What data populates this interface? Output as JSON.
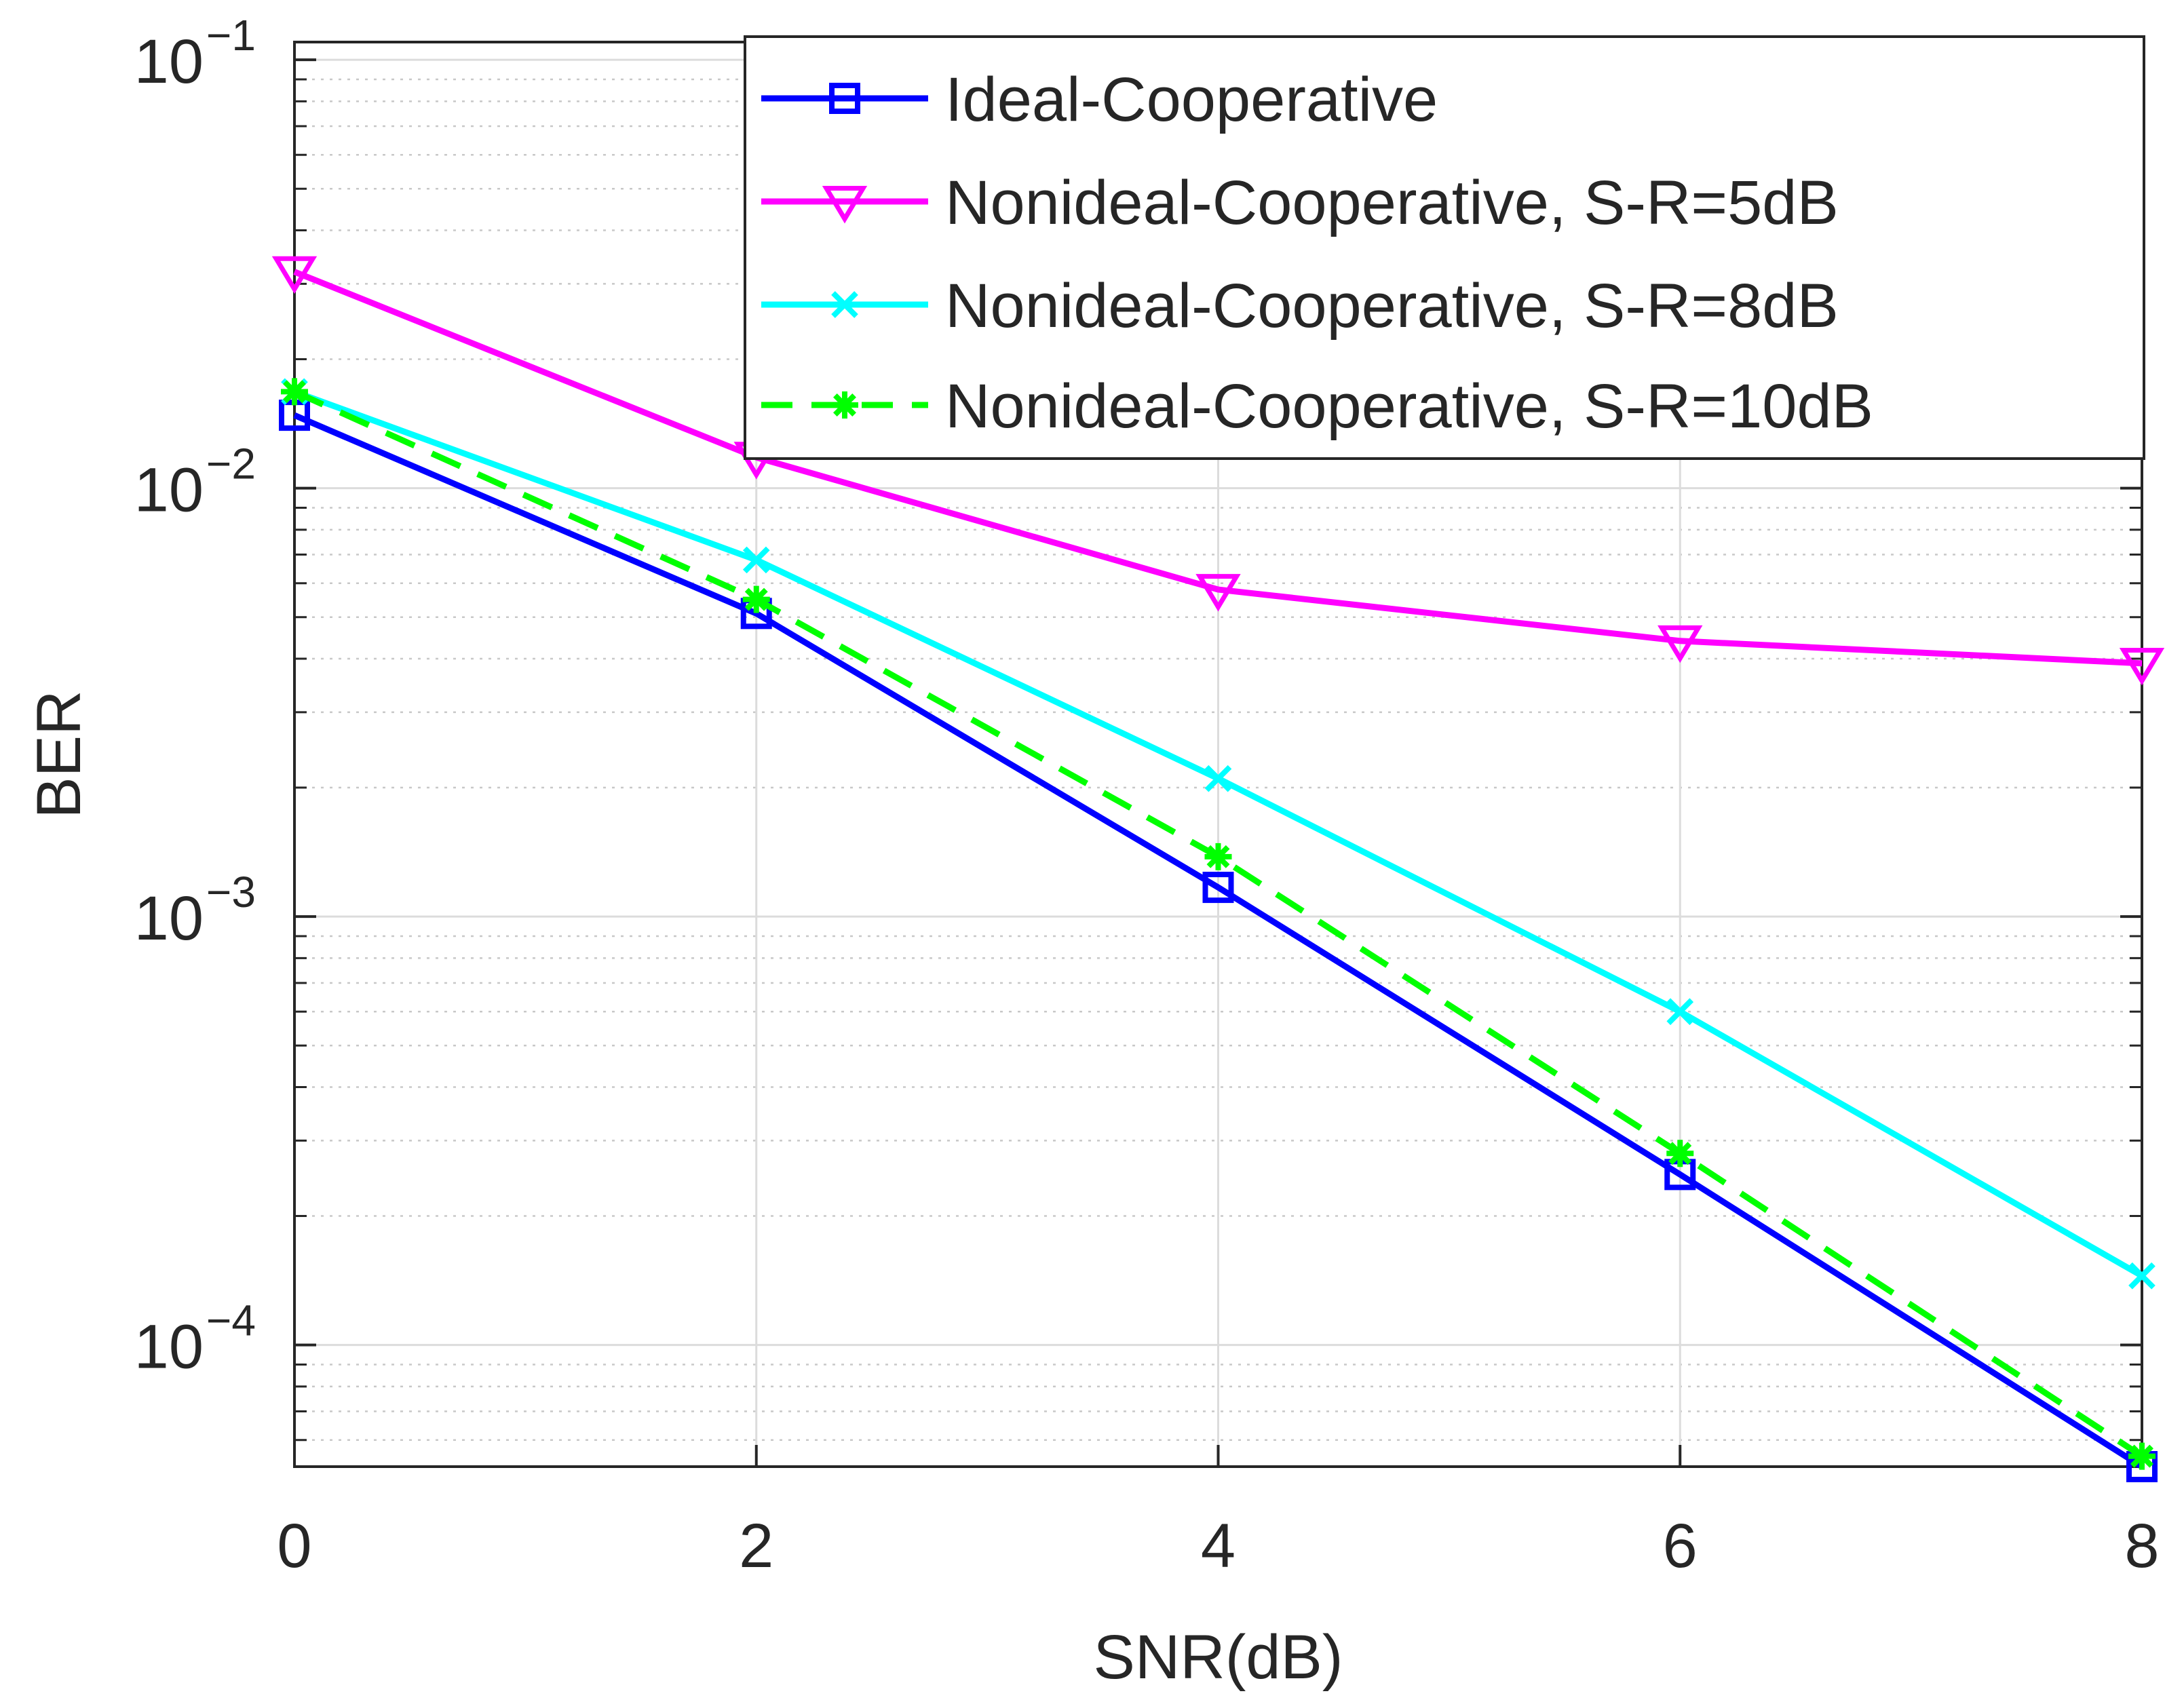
{
  "chart_data": {
    "type": "line",
    "xlabel": "SNR(dB)",
    "ylabel": "BER",
    "xlim": [
      0,
      8
    ],
    "ylim": [
      5.2e-05,
      0.11
    ],
    "yscale": "log",
    "grid": true,
    "legend_position": "top-right",
    "x_ticks": [
      {
        "value": 0,
        "label": "0"
      },
      {
        "value": 2,
        "label": "2"
      },
      {
        "value": 4,
        "label": "4"
      },
      {
        "value": 6,
        "label": "6"
      },
      {
        "value": 8,
        "label": "8"
      }
    ],
    "y_ticks": [
      {
        "value": 0.1,
        "base": "10",
        "exp": "−1"
      },
      {
        "value": 0.01,
        "base": "10",
        "exp": "−2"
      },
      {
        "value": 0.001,
        "base": "10",
        "exp": "−3"
      },
      {
        "value": 0.0001,
        "base": "10",
        "exp": "−4"
      }
    ],
    "x": [
      0,
      2,
      4,
      6,
      8
    ],
    "series": [
      {
        "name": "Ideal-Cooperative",
        "color": "#0000ff",
        "marker": "square",
        "dash": "solid",
        "values": [
          0.0148,
          0.0051,
          0.00117,
          0.00025,
          5.2e-05
        ]
      },
      {
        "name": "Nonideal-Cooperative, S-R=5dB",
        "color": "#ff00ff",
        "marker": "triangle-down",
        "dash": "solid",
        "values": [
          0.032,
          0.0118,
          0.0058,
          0.0044,
          0.0039
        ]
      },
      {
        "name": "Nonideal-Cooperative, S-R=8dB",
        "color": "#00ffff",
        "marker": "x",
        "dash": "solid",
        "values": [
          0.0168,
          0.0068,
          0.0021,
          0.0006,
          0.000145
        ]
      },
      {
        "name": "Nonideal-Cooperative, S-R=10dB",
        "color": "#00ff00",
        "marker": "asterisk",
        "dash": "dashed",
        "values": [
          0.0168,
          0.0055,
          0.00138,
          0.00028,
          5.5e-05
        ]
      }
    ]
  }
}
